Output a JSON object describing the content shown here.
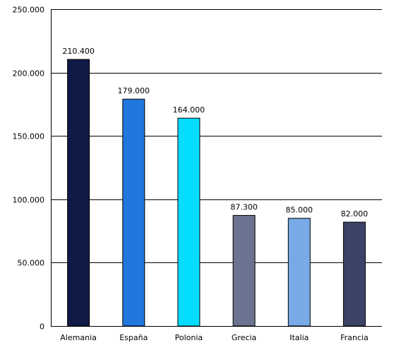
{
  "chart_data": {
    "type": "bar",
    "categories": [
      "Alemania",
      "España",
      "Polonia",
      "Grecia",
      "Italia",
      "Francia"
    ],
    "values": [
      210400,
      179000,
      164000,
      87300,
      85000,
      82000
    ],
    "value_labels": [
      "210.400",
      "179.000",
      "164.000",
      "87.300",
      "85.000",
      "82.000"
    ],
    "colors": [
      "#111a44",
      "#2277dd",
      "#00ddff",
      "#6b7390",
      "#77aae6",
      "#3b4466"
    ],
    "ylim": [
      0,
      250000
    ],
    "yticks": [
      0,
      50000,
      100000,
      150000,
      200000,
      250000
    ],
    "ytick_labels": [
      "0",
      "50.000",
      "100.000",
      "150.000",
      "200.000",
      "250.000"
    ],
    "grid": true,
    "legend": "none"
  }
}
